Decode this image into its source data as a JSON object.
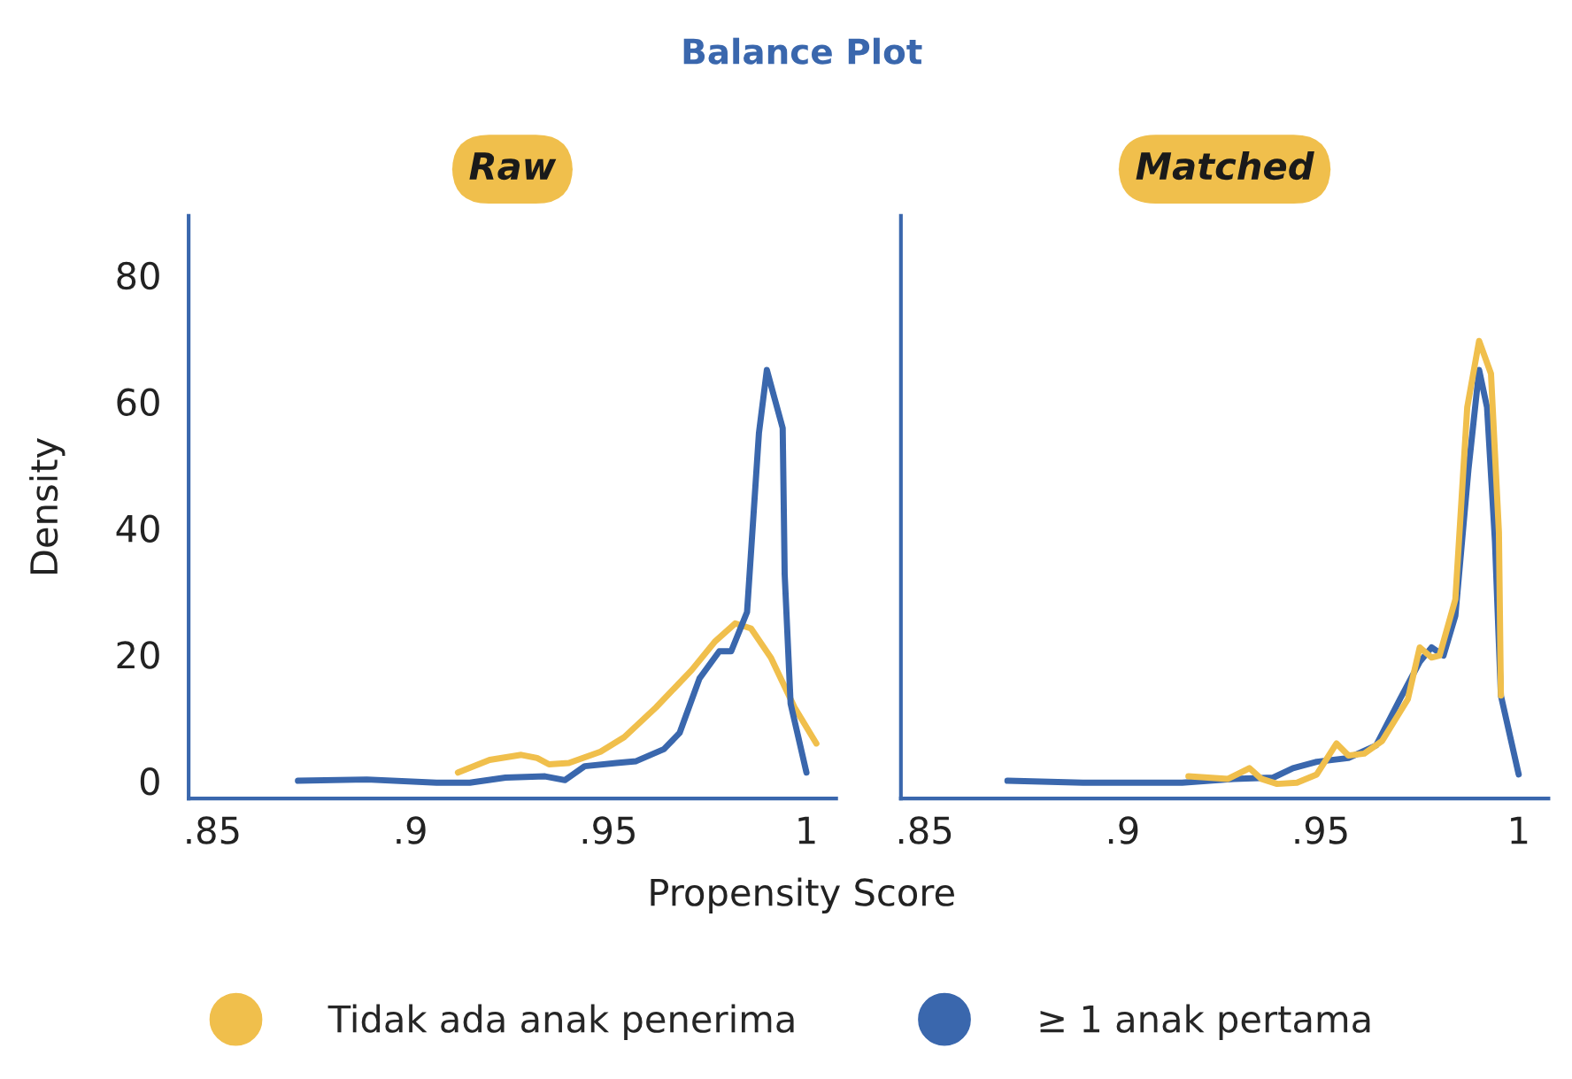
{
  "chart_data": [
    {
      "type": "line",
      "title": "Balance Plot",
      "subtitle": "Raw",
      "xlabel": "Propensity Score",
      "ylabel": "Density",
      "legend": "bottom",
      "grid": false,
      "marker": "none",
      "line_style": "solid",
      "xlim": [
        0.844,
        1.0075
      ],
      "ylim": [
        -2.8,
        89.4
      ],
      "xticks": [
        {
          "value": 0.85,
          "label": ".85"
        },
        {
          "value": 0.9,
          "label": ".9"
        },
        {
          "value": 0.95,
          "label": ".95"
        },
        1
      ],
      "yticks": [
        0,
        20,
        40,
        60,
        80
      ],
      "series": [
        {
          "name": "Tidak ada anak penerima",
          "color": "#f0bf4c",
          "x": [
            0.912,
            0.92,
            0.928,
            0.932,
            0.935,
            0.94,
            0.948,
            0.954,
            0.962,
            0.971,
            0.977,
            0.982,
            0.986,
            0.991,
            0.997,
            1.0025
          ],
          "values": [
            1.3,
            3.3,
            4.1,
            3.6,
            2.6,
            2.8,
            4.6,
            6.9,
            11.6,
            17.5,
            22.1,
            24.9,
            24.1,
            19.5,
            11.6,
            5.9
          ]
        },
        {
          "name": "≥ 1 anak pertama",
          "color": "#3a67ad",
          "x": [
            0.8716,
            0.889,
            0.9066,
            0.915,
            0.924,
            0.934,
            0.939,
            0.944,
            0.952,
            0.957,
            0.964,
            0.968,
            0.973,
            0.978,
            0.981,
            0.985,
            0.988,
            0.99,
            0.992,
            0.994,
            0.9945,
            0.996,
            1.0
          ],
          "values": [
            0,
            0.2,
            -0.3,
            -0.3,
            0.5,
            0.7,
            0.1,
            2.3,
            2.8,
            3.1,
            5.0,
            7.6,
            16.2,
            20.5,
            20.5,
            26.7,
            55,
            65,
            60.4,
            55.8,
            32.7,
            12.2,
            1.3
          ]
        }
      ]
    },
    {
      "type": "line",
      "subtitle": "Matched",
      "legend": "bottom",
      "grid": false,
      "marker": "none",
      "line_style": "solid",
      "tick_labels": "x",
      "xlim": [
        0.844,
        1.0075
      ],
      "ylim": [
        -2.8,
        89.4
      ],
      "xticks": [
        {
          "value": 0.85,
          "label": ".85"
        },
        {
          "value": 0.9,
          "label": ".9"
        },
        {
          "value": 0.95,
          "label": ".95"
        },
        1
      ],
      "yticks": [
        0,
        20,
        40,
        60,
        80
      ],
      "series": [
        {
          "name": "≥ 1 anak pertama",
          "color": "#3a67ad",
          "x": [
            0.8709,
            0.89,
            0.915,
            0.928,
            0.938,
            0.943,
            0.949,
            0.957,
            0.964,
            0.97,
            0.975,
            0.978,
            0.981,
            0.984,
            0.9873,
            0.99,
            0.992,
            0.994,
            0.9955,
            1.0
          ],
          "values": [
            0,
            -0.3,
            -0.3,
            0.3,
            0.5,
            2.0,
            3.0,
            3.6,
            5.6,
            12.9,
            18.8,
            21.1,
            19.8,
            26.1,
            49.2,
            65.0,
            59.1,
            37.9,
            13.5,
            1.0
          ]
        },
        {
          "name": "Tidak ada anak penerima",
          "color": "#f0bf4c",
          "x": [
            0.9166,
            0.9266,
            0.932,
            0.935,
            0.939,
            0.944,
            0.949,
            0.954,
            0.957,
            0.961,
            0.9655,
            0.972,
            0.975,
            0.978,
            0.98,
            0.984,
            0.987,
            0.99,
            0.993,
            0.995,
            0.9955
          ],
          "values": [
            0.7,
            0.3,
            2.0,
            0.3,
            -0.5,
            -0.3,
            1.0,
            5.9,
            4.0,
            4.3,
            6.3,
            12.9,
            21.1,
            19.5,
            19.8,
            28.7,
            59.1,
            69.6,
            64.4,
            39.3,
            13.5
          ]
        }
      ]
    }
  ]
}
